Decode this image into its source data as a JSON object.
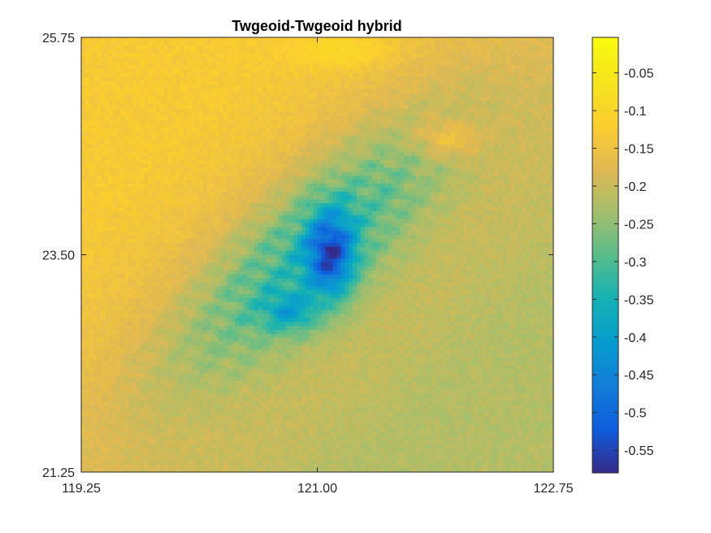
{
  "chart_data": {
    "type": "heatmap",
    "title": "Twgeoid-Twgeoid hybrid",
    "xlabel": "",
    "ylabel": "",
    "x_ticks": [
      "119.25",
      "121.00",
      "122.75"
    ],
    "x_tick_values": [
      119.25,
      121.0,
      122.75
    ],
    "y_ticks": [
      "21.25",
      "23.50",
      "25.75"
    ],
    "y_tick_values": [
      21.25,
      23.5,
      25.75
    ],
    "xlim": [
      119.25,
      122.75
    ],
    "ylim": [
      21.25,
      25.75
    ],
    "colormap": "parula",
    "colorbar": {
      "range": [
        -0.58,
        -0.003
      ],
      "ticks": [
        "-0.05",
        "-0.1",
        "-0.15",
        "-0.2",
        "-0.25",
        "-0.3",
        "-0.35",
        "-0.4",
        "-0.45",
        "-0.5",
        "-0.55"
      ],
      "tick_values": [
        -0.05,
        -0.1,
        -0.15,
        -0.2,
        -0.25,
        -0.3,
        -0.35,
        -0.4,
        -0.45,
        -0.5,
        -0.55
      ]
    },
    "grid": false,
    "features": {
      "background_level": -0.13,
      "southeast_level": -0.22,
      "belt_trough_level": -0.28,
      "minimum_value": -0.56,
      "minimum_location": [
        121.1,
        23.5
      ],
      "northeast_ridge_value": -0.06,
      "northeast_ridge_location": [
        121.95,
        24.7
      ]
    }
  }
}
